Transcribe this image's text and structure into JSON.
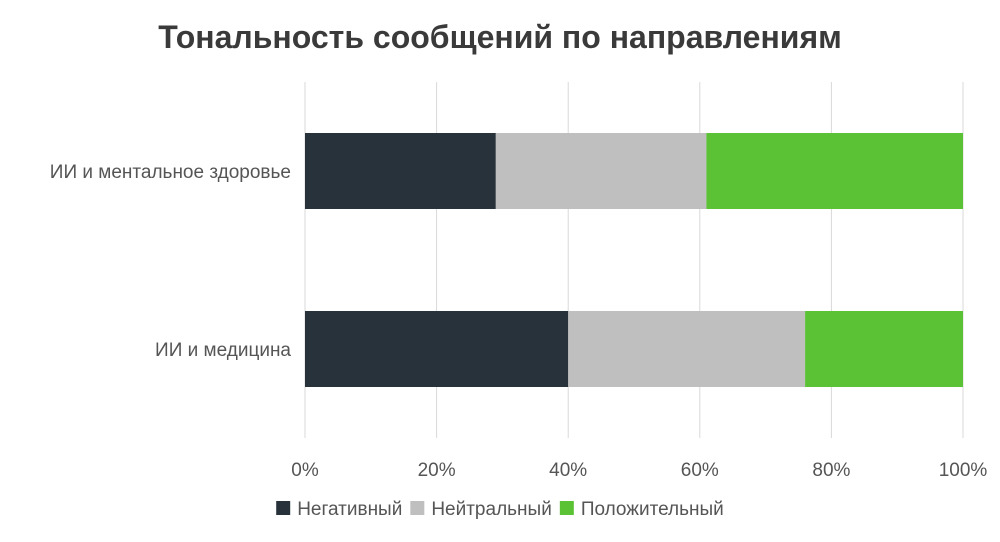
{
  "chart_data": {
    "type": "bar",
    "orientation": "horizontal",
    "stacked": "percent",
    "title": "Тональность сообщений по направлениям",
    "categories": [
      "ИИ и ментальное здоровье",
      "ИИ и медицина"
    ],
    "series": [
      {
        "name": "Негативный",
        "color": "#27323a",
        "values": [
          29,
          40
        ]
      },
      {
        "name": "Нейтральный",
        "color": "#bfbfbf",
        "values": [
          32,
          36
        ]
      },
      {
        "name": "Положительный",
        "color": "#5bc236",
        "values": [
          39,
          24
        ]
      }
    ],
    "xlim": [
      0,
      100
    ],
    "x_ticks": [
      "0%",
      "20%",
      "40%",
      "60%",
      "80%",
      "100%"
    ],
    "grid": true,
    "legend_position": "bottom"
  }
}
